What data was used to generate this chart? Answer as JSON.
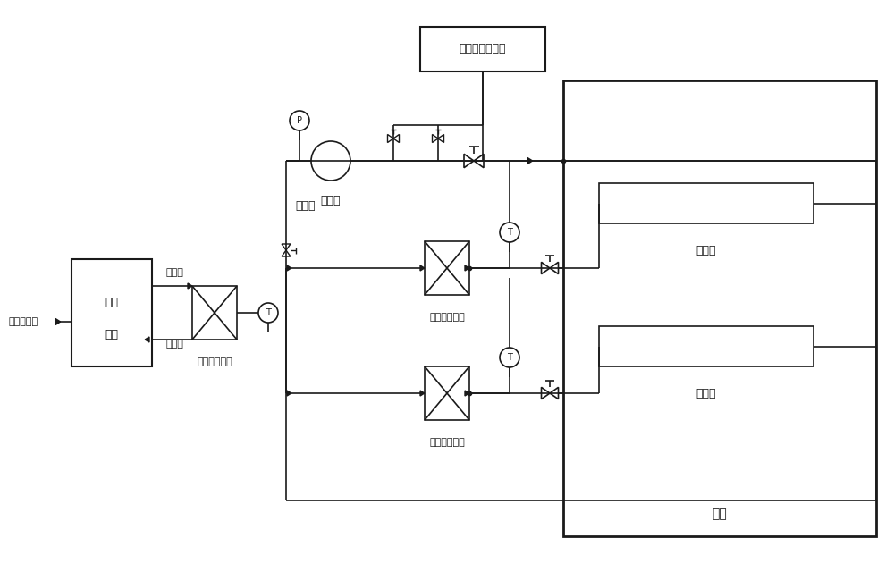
{
  "bg_color": "#ffffff",
  "line_color": "#1a1a1a",
  "line_width": 1.2,
  "font_size": 9,
  "labels": {
    "buffer_tank": "载冷剂缓冲容器",
    "circulation_pump": "循环泵",
    "refrigerant_coolant": "载冷剂",
    "refrigerant_cooler": "载冷剂冷却器",
    "refrigerant_heater1": "载冷剂加热器",
    "refrigerant_heater2": "载冷剂加热器",
    "chiller_line1": "制冷",
    "chiller_line2": "机组",
    "cold_water": "冷却循环水",
    "refrigerant_in": "制冷剂",
    "refrigerant_out": "制冷剂",
    "main_sink": "主热沉",
    "aux_sink": "辅热沉",
    "container": "容器"
  }
}
